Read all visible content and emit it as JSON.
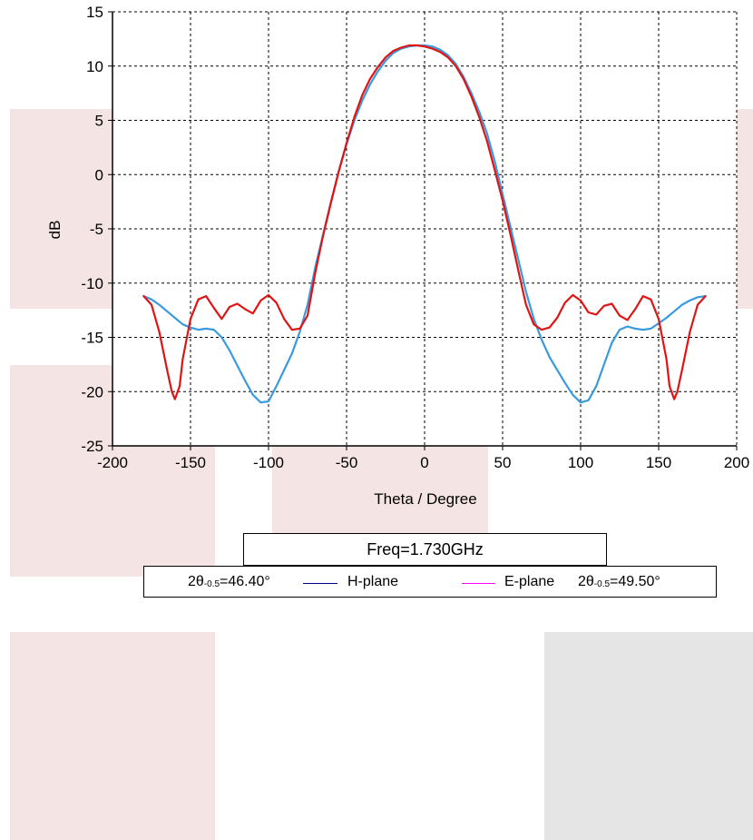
{
  "colors": {
    "h_plane_curve": "#3a9ae0",
    "e_plane_curve": "#e01414",
    "legend_h_plane": "#00008b",
    "legend_e_plane": "#ff00ff",
    "background_pink": "#f4e4e4",
    "background_gray": "#e5e5e5"
  },
  "chart_data": {
    "type": "line",
    "xlabel": "Theta / Degree",
    "ylabel": "dB",
    "xlim": [
      -200,
      200
    ],
    "ylim": [
      -25,
      15
    ],
    "xticks": [
      -200,
      -150,
      -100,
      -50,
      0,
      50,
      100,
      150,
      200
    ],
    "yticks": [
      -25,
      -20,
      -15,
      -10,
      -5,
      0,
      5,
      10,
      15
    ],
    "grid": true,
    "series": [
      {
        "name": "H-plane",
        "x": [
          -180,
          -175,
          -170,
          -165,
          -160,
          -155,
          -150,
          -145,
          -140,
          -135,
          -130,
          -125,
          -120,
          -115,
          -110,
          -105,
          -100,
          -95,
          -90,
          -85,
          -80,
          -75,
          -70,
          -65,
          -60,
          -55,
          -50,
          -45,
          -40,
          -35,
          -30,
          -25,
          -20,
          -15,
          -10,
          -5,
          0,
          5,
          10,
          15,
          20,
          25,
          30,
          35,
          40,
          45,
          50,
          55,
          60,
          65,
          70,
          75,
          80,
          85,
          90,
          95,
          100,
          105,
          110,
          115,
          120,
          125,
          130,
          135,
          140,
          145,
          150,
          155,
          160,
          165,
          170,
          175,
          180
        ],
        "values": [
          -11.2,
          -11.5,
          -12.0,
          -12.6,
          -13.2,
          -13.8,
          -14.1,
          -14.3,
          -14.2,
          -14.3,
          -15.0,
          -16.2,
          -17.6,
          -19.0,
          -20.3,
          -21.0,
          -20.9,
          -19.5,
          -18.0,
          -16.5,
          -14.5,
          -12.0,
          -8.5,
          -5.5,
          -2.5,
          0.3,
          2.8,
          5.0,
          6.8,
          8.3,
          9.5,
          10.5,
          11.2,
          11.6,
          11.8,
          11.9,
          11.9,
          11.8,
          11.5,
          11.0,
          10.2,
          9.0,
          7.5,
          5.8,
          3.8,
          1.2,
          -1.8,
          -4.8,
          -7.8,
          -10.8,
          -13.3,
          -15.2,
          -16.8,
          -18.0,
          -19.2,
          -20.3,
          -21.0,
          -20.8,
          -19.5,
          -17.5,
          -15.5,
          -14.3,
          -14.0,
          -14.2,
          -14.3,
          -14.2,
          -13.7,
          -13.2,
          -12.6,
          -12.0,
          -11.6,
          -11.3,
          -11.2
        ]
      },
      {
        "name": "E-plane",
        "x": [
          -180,
          -175,
          -170,
          -165,
          -162,
          -160,
          -157,
          -155,
          -150,
          -145,
          -140,
          -135,
          -130,
          -125,
          -120,
          -115,
          -110,
          -105,
          -100,
          -95,
          -90,
          -85,
          -80,
          -75,
          -70,
          -65,
          -60,
          -55,
          -50,
          -45,
          -40,
          -35,
          -30,
          -25,
          -20,
          -15,
          -10,
          -5,
          0,
          5,
          10,
          15,
          20,
          25,
          30,
          35,
          40,
          45,
          50,
          55,
          60,
          65,
          70,
          75,
          80,
          85,
          90,
          95,
          100,
          105,
          110,
          115,
          120,
          125,
          130,
          135,
          140,
          145,
          150,
          155,
          157,
          160,
          162,
          165,
          170,
          175,
          180
        ],
        "values": [
          -11.2,
          -12.0,
          -14.5,
          -18.0,
          -20.0,
          -20.7,
          -19.5,
          -17.0,
          -13.3,
          -11.5,
          -11.2,
          -12.3,
          -13.3,
          -12.2,
          -11.9,
          -12.4,
          -12.8,
          -11.6,
          -11.1,
          -11.8,
          -13.3,
          -14.3,
          -14.2,
          -13.0,
          -9.0,
          -5.6,
          -2.6,
          0.3,
          2.9,
          5.3,
          7.3,
          8.8,
          9.9,
          10.8,
          11.4,
          11.7,
          11.9,
          11.9,
          11.8,
          11.6,
          11.3,
          10.8,
          10.0,
          8.8,
          7.2,
          5.3,
          3.1,
          0.4,
          -2.4,
          -5.5,
          -8.8,
          -12.0,
          -13.8,
          -14.3,
          -14.1,
          -13.2,
          -11.8,
          -11.1,
          -11.6,
          -12.7,
          -12.9,
          -12.1,
          -11.9,
          -13.0,
          -13.4,
          -12.4,
          -11.2,
          -11.5,
          -13.3,
          -17.0,
          -19.5,
          -20.7,
          -20.0,
          -18.0,
          -14.5,
          -12.0,
          -11.2
        ]
      }
    ]
  },
  "freq_box": {
    "label": "Freq=1.730GHz"
  },
  "legend": {
    "h_beamwidth_prefix": "2θ",
    "h_beamwidth_sub": "-0.5",
    "h_beamwidth_value": "=46.40°",
    "h_label": "H-plane",
    "e_label": "E-plane",
    "e_beamwidth_prefix": "2θ",
    "e_beamwidth_sub": "-0.5",
    "e_beamwidth_value": "=49.50°"
  }
}
